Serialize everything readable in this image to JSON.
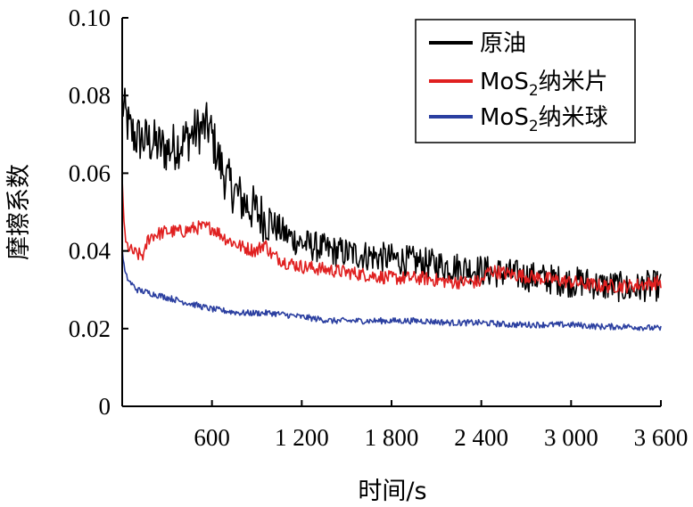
{
  "chart_data": {
    "type": "line",
    "title": "",
    "xlabel": "时间/s",
    "ylabel": "摩擦系数",
    "xlim": [
      0,
      3600
    ],
    "ylim": [
      0,
      0.1
    ],
    "x_ticks": [
      600,
      1200,
      1800,
      2400,
      3000,
      3600
    ],
    "x_tick_labels": [
      "600",
      "1 200",
      "1 800",
      "2 400",
      "3 000",
      "3 600"
    ],
    "y_ticks": [
      0,
      0.02,
      0.04,
      0.06,
      0.08,
      0.1
    ],
    "y_tick_labels": [
      "0",
      "0.02",
      "0.04",
      "0.06",
      "0.08",
      "0.10"
    ],
    "grid": false,
    "legend_position": "top-right",
    "series": [
      {
        "name": "原油",
        "legend_label": "原油",
        "color": "#000000",
        "x": [
          0,
          50,
          100,
          200,
          300,
          400,
          500,
          580,
          650,
          700,
          800,
          900,
          1000,
          1100,
          1200,
          1300,
          1400,
          1600,
          1800,
          2000,
          2200,
          2400,
          2600,
          2800,
          3000,
          3100,
          3200,
          3300,
          3400,
          3500,
          3600
        ],
        "values": [
          0.078,
          0.071,
          0.069,
          0.068,
          0.066,
          0.068,
          0.071,
          0.072,
          0.063,
          0.058,
          0.053,
          0.05,
          0.047,
          0.044,
          0.042,
          0.041,
          0.04,
          0.039,
          0.038,
          0.037,
          0.036,
          0.035,
          0.034,
          0.033,
          0.032,
          0.032,
          0.031,
          0.031,
          0.03,
          0.031,
          0.031
        ],
        "noise": 0.004
      },
      {
        "name": "MoS2纳米片",
        "legend_label_main": "MoS",
        "legend_label_sub": "2",
        "legend_label_rest": "纳米片",
        "color": "#e02020",
        "x": [
          0,
          20,
          60,
          100,
          150,
          170,
          200,
          300,
          400,
          500,
          600,
          700,
          800,
          900,
          950,
          1000,
          1100,
          1200,
          1400,
          1600,
          1800,
          2000,
          2200,
          2400,
          2450,
          2600,
          2800,
          3000,
          3200,
          3400,
          3600
        ],
        "values": [
          0.058,
          0.042,
          0.04,
          0.039,
          0.039,
          0.043,
          0.044,
          0.045,
          0.045,
          0.046,
          0.046,
          0.043,
          0.041,
          0.04,
          0.042,
          0.039,
          0.037,
          0.036,
          0.035,
          0.034,
          0.033,
          0.033,
          0.032,
          0.032,
          0.035,
          0.034,
          0.033,
          0.032,
          0.031,
          0.031,
          0.032
        ],
        "noise": 0.0018
      },
      {
        "name": "MoS2纳米球",
        "legend_label_main": "MoS",
        "legend_label_sub": "2",
        "legend_label_rest": "纳米球",
        "color": "#2b3fa0",
        "x": [
          0,
          20,
          50,
          100,
          200,
          300,
          400,
          500,
          600,
          800,
          1000,
          1200,
          1400,
          1600,
          1800,
          2000,
          2200,
          2400,
          2600,
          2800,
          3000,
          3200,
          3400,
          3600
        ],
        "values": [
          0.04,
          0.034,
          0.032,
          0.03,
          0.029,
          0.028,
          0.027,
          0.026,
          0.025,
          0.024,
          0.024,
          0.023,
          0.022,
          0.022,
          0.022,
          0.022,
          0.0215,
          0.0215,
          0.021,
          0.021,
          0.021,
          0.0205,
          0.0205,
          0.02
        ],
        "noise": 0.0008
      }
    ]
  }
}
